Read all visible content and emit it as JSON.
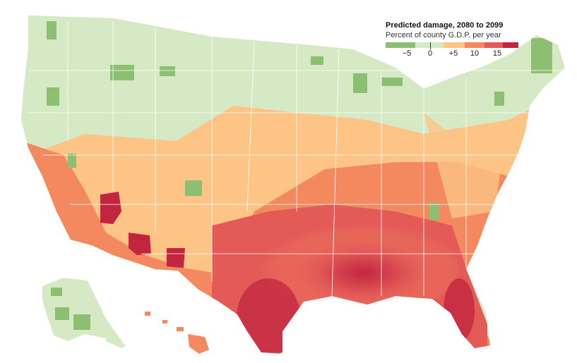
{
  "legend": {
    "title": "Predicted damage, 2080 to 2099",
    "subtitle": "Percent of county G.D.P. per year",
    "ticks": [
      "−5",
      "0",
      "+5",
      "10",
      "15"
    ],
    "bins": [
      {
        "color": "#8dbf72"
      },
      {
        "color": "#d4e9c4"
      },
      {
        "color": "#fdc486"
      },
      {
        "color": "#f4895f"
      },
      {
        "color": "#e35a57"
      },
      {
        "color": "#c2263f"
      }
    ]
  },
  "colors": {
    "strong_green": "#8dbf72",
    "light_green": "#d4e9c4",
    "light_orange": "#fdc486",
    "orange": "#f4895f",
    "red": "#e35a57",
    "dark_red": "#c2263f",
    "state_border": "#ffffff"
  }
}
